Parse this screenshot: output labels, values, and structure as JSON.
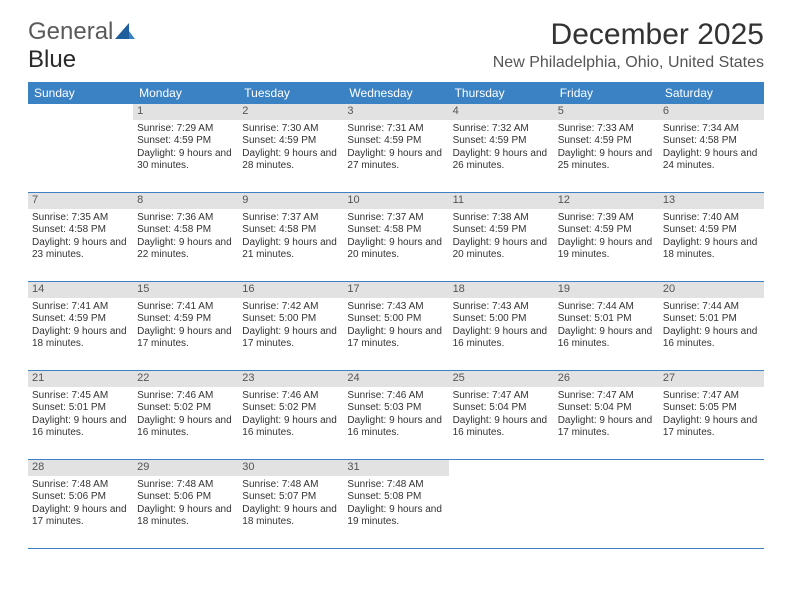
{
  "logo": {
    "text1": "General",
    "text2": "Blue"
  },
  "title": "December 2025",
  "location": "New Philadelphia, Ohio, United States",
  "colors": {
    "header_bg": "#3b82c4",
    "header_text": "#ffffff",
    "strip_bg": "#e2e2e2",
    "strip_text": "#555555",
    "body_text": "#333333",
    "rule": "#3b82c4"
  },
  "daysOfWeek": [
    "Sunday",
    "Monday",
    "Tuesday",
    "Wednesday",
    "Thursday",
    "Friday",
    "Saturday"
  ],
  "weeks": [
    [
      {
        "n": "",
        "s": "",
        "ss": "",
        "d": ""
      },
      {
        "n": "1",
        "s": "Sunrise: 7:29 AM",
        "ss": "Sunset: 4:59 PM",
        "d": "Daylight: 9 hours and 30 minutes."
      },
      {
        "n": "2",
        "s": "Sunrise: 7:30 AM",
        "ss": "Sunset: 4:59 PM",
        "d": "Daylight: 9 hours and 28 minutes."
      },
      {
        "n": "3",
        "s": "Sunrise: 7:31 AM",
        "ss": "Sunset: 4:59 PM",
        "d": "Daylight: 9 hours and 27 minutes."
      },
      {
        "n": "4",
        "s": "Sunrise: 7:32 AM",
        "ss": "Sunset: 4:59 PM",
        "d": "Daylight: 9 hours and 26 minutes."
      },
      {
        "n": "5",
        "s": "Sunrise: 7:33 AM",
        "ss": "Sunset: 4:59 PM",
        "d": "Daylight: 9 hours and 25 minutes."
      },
      {
        "n": "6",
        "s": "Sunrise: 7:34 AM",
        "ss": "Sunset: 4:58 PM",
        "d": "Daylight: 9 hours and 24 minutes."
      }
    ],
    [
      {
        "n": "7",
        "s": "Sunrise: 7:35 AM",
        "ss": "Sunset: 4:58 PM",
        "d": "Daylight: 9 hours and 23 minutes."
      },
      {
        "n": "8",
        "s": "Sunrise: 7:36 AM",
        "ss": "Sunset: 4:58 PM",
        "d": "Daylight: 9 hours and 22 minutes."
      },
      {
        "n": "9",
        "s": "Sunrise: 7:37 AM",
        "ss": "Sunset: 4:58 PM",
        "d": "Daylight: 9 hours and 21 minutes."
      },
      {
        "n": "10",
        "s": "Sunrise: 7:37 AM",
        "ss": "Sunset: 4:58 PM",
        "d": "Daylight: 9 hours and 20 minutes."
      },
      {
        "n": "11",
        "s": "Sunrise: 7:38 AM",
        "ss": "Sunset: 4:59 PM",
        "d": "Daylight: 9 hours and 20 minutes."
      },
      {
        "n": "12",
        "s": "Sunrise: 7:39 AM",
        "ss": "Sunset: 4:59 PM",
        "d": "Daylight: 9 hours and 19 minutes."
      },
      {
        "n": "13",
        "s": "Sunrise: 7:40 AM",
        "ss": "Sunset: 4:59 PM",
        "d": "Daylight: 9 hours and 18 minutes."
      }
    ],
    [
      {
        "n": "14",
        "s": "Sunrise: 7:41 AM",
        "ss": "Sunset: 4:59 PM",
        "d": "Daylight: 9 hours and 18 minutes."
      },
      {
        "n": "15",
        "s": "Sunrise: 7:41 AM",
        "ss": "Sunset: 4:59 PM",
        "d": "Daylight: 9 hours and 17 minutes."
      },
      {
        "n": "16",
        "s": "Sunrise: 7:42 AM",
        "ss": "Sunset: 5:00 PM",
        "d": "Daylight: 9 hours and 17 minutes."
      },
      {
        "n": "17",
        "s": "Sunrise: 7:43 AM",
        "ss": "Sunset: 5:00 PM",
        "d": "Daylight: 9 hours and 17 minutes."
      },
      {
        "n": "18",
        "s": "Sunrise: 7:43 AM",
        "ss": "Sunset: 5:00 PM",
        "d": "Daylight: 9 hours and 16 minutes."
      },
      {
        "n": "19",
        "s": "Sunrise: 7:44 AM",
        "ss": "Sunset: 5:01 PM",
        "d": "Daylight: 9 hours and 16 minutes."
      },
      {
        "n": "20",
        "s": "Sunrise: 7:44 AM",
        "ss": "Sunset: 5:01 PM",
        "d": "Daylight: 9 hours and 16 minutes."
      }
    ],
    [
      {
        "n": "21",
        "s": "Sunrise: 7:45 AM",
        "ss": "Sunset: 5:01 PM",
        "d": "Daylight: 9 hours and 16 minutes."
      },
      {
        "n": "22",
        "s": "Sunrise: 7:46 AM",
        "ss": "Sunset: 5:02 PM",
        "d": "Daylight: 9 hours and 16 minutes."
      },
      {
        "n": "23",
        "s": "Sunrise: 7:46 AM",
        "ss": "Sunset: 5:02 PM",
        "d": "Daylight: 9 hours and 16 minutes."
      },
      {
        "n": "24",
        "s": "Sunrise: 7:46 AM",
        "ss": "Sunset: 5:03 PM",
        "d": "Daylight: 9 hours and 16 minutes."
      },
      {
        "n": "25",
        "s": "Sunrise: 7:47 AM",
        "ss": "Sunset: 5:04 PM",
        "d": "Daylight: 9 hours and 16 minutes."
      },
      {
        "n": "26",
        "s": "Sunrise: 7:47 AM",
        "ss": "Sunset: 5:04 PM",
        "d": "Daylight: 9 hours and 17 minutes."
      },
      {
        "n": "27",
        "s": "Sunrise: 7:47 AM",
        "ss": "Sunset: 5:05 PM",
        "d": "Daylight: 9 hours and 17 minutes."
      }
    ],
    [
      {
        "n": "28",
        "s": "Sunrise: 7:48 AM",
        "ss": "Sunset: 5:06 PM",
        "d": "Daylight: 9 hours and 17 minutes."
      },
      {
        "n": "29",
        "s": "Sunrise: 7:48 AM",
        "ss": "Sunset: 5:06 PM",
        "d": "Daylight: 9 hours and 18 minutes."
      },
      {
        "n": "30",
        "s": "Sunrise: 7:48 AM",
        "ss": "Sunset: 5:07 PM",
        "d": "Daylight: 9 hours and 18 minutes."
      },
      {
        "n": "31",
        "s": "Sunrise: 7:48 AM",
        "ss": "Sunset: 5:08 PM",
        "d": "Daylight: 9 hours and 19 minutes."
      },
      {
        "n": "",
        "s": "",
        "ss": "",
        "d": ""
      },
      {
        "n": "",
        "s": "",
        "ss": "",
        "d": ""
      },
      {
        "n": "",
        "s": "",
        "ss": "",
        "d": ""
      }
    ]
  ]
}
